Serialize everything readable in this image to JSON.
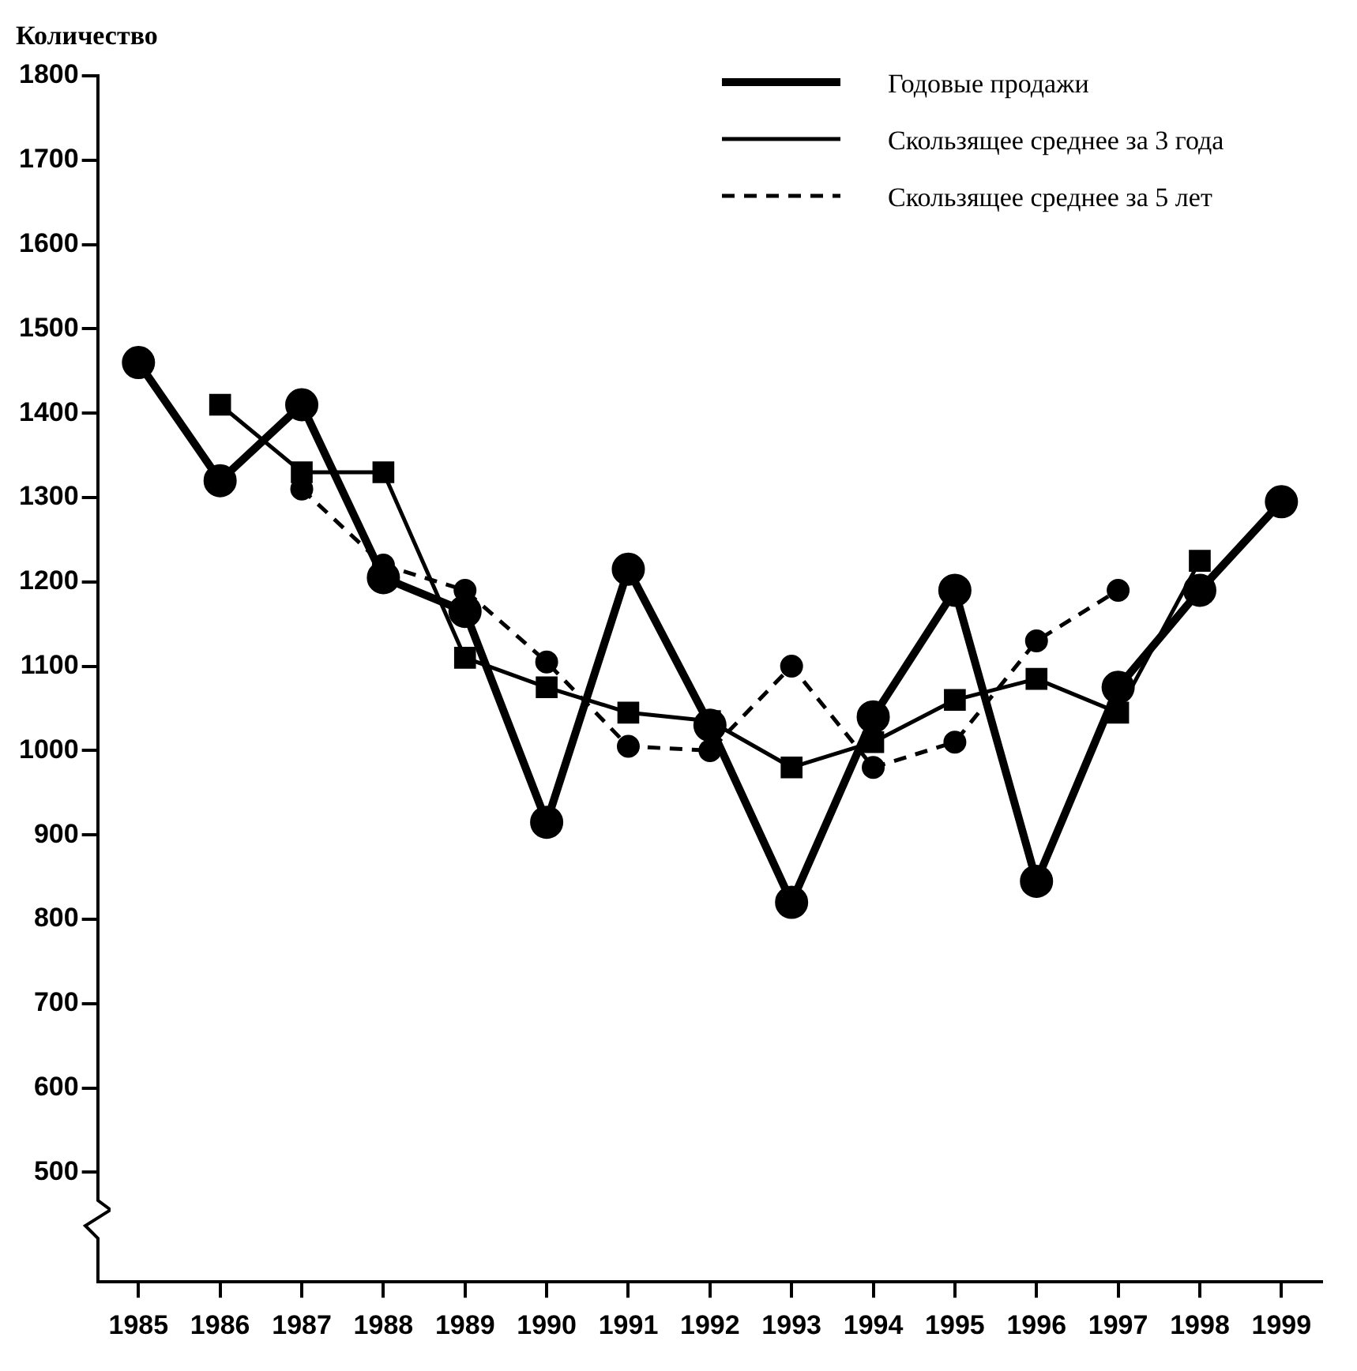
{
  "chart_data": {
    "type": "line",
    "ylabel": "Количество",
    "categories": [
      "1985",
      "1986",
      "1987",
      "1988",
      "1989",
      "1990",
      "1991",
      "1992",
      "1993",
      "1994",
      "1995",
      "1996",
      "1997",
      "1998",
      "1999"
    ],
    "series": [
      {
        "name": "Годовые продажи",
        "color": "#000000",
        "marker": "circle",
        "line_style": "solid",
        "values": [
          1460,
          1320,
          1410,
          1205,
          1165,
          915,
          1215,
          1030,
          820,
          1040,
          1190,
          845,
          1075,
          1190,
          1295
        ]
      },
      {
        "name": "Скользящее среднее за 3 года",
        "color": "#000000",
        "marker": "square",
        "line_style": "solid",
        "values": [
          null,
          1410,
          1330,
          1330,
          1110,
          1075,
          1045,
          1035,
          980,
          1010,
          1060,
          1085,
          1045,
          1225,
          null
        ]
      },
      {
        "name": "Скользящее среднее за 5 лет",
        "color": "#000000",
        "marker": "circle",
        "line_style": "dashed",
        "values": [
          null,
          null,
          1310,
          1220,
          1190,
          1105,
          1005,
          1000,
          1100,
          980,
          1010,
          1130,
          1190,
          null,
          null
        ]
      }
    ],
    "ylim": [
      370,
      1800
    ],
    "yticks": [
      500,
      600,
      700,
      800,
      900,
      1000,
      1100,
      1200,
      1300,
      1400,
      1500,
      1600,
      1700,
      1800
    ],
    "grid": false,
    "legend": "top right"
  }
}
